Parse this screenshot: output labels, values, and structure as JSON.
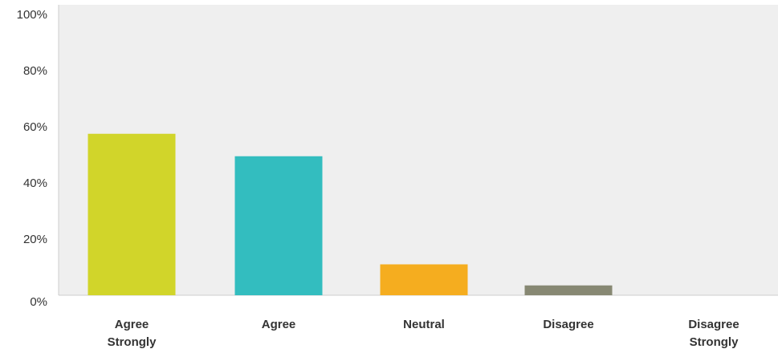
{
  "chart_data": {
    "type": "bar",
    "categories": [
      "Agree Strongly",
      "Agree",
      "Neutral",
      "Disagree",
      "Disagree Strongly"
    ],
    "values": [
      57.5,
      49.5,
      11,
      3.5,
      0
    ],
    "colors": [
      "#d1d52a",
      "#33bdbf",
      "#f5ad1f",
      "#878873",
      "#878873"
    ],
    "ylim": [
      0,
      100
    ],
    "yticks": [
      0,
      20,
      40,
      60,
      80,
      100
    ],
    "ytick_labels": [
      "0%",
      "20%",
      "40%",
      "60%",
      "80%",
      "100%"
    ],
    "plot_background": "#efefef",
    "grid": false,
    "legend": "none",
    "title": "",
    "xlabel": "",
    "ylabel": ""
  }
}
